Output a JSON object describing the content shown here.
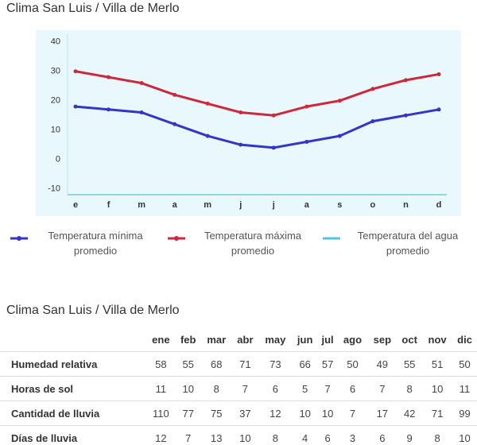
{
  "chart_data": {
    "type": "line",
    "title": "Clima San Luis / Villa de Merlo",
    "categories": [
      "e",
      "f",
      "m",
      "a",
      "m",
      "j",
      "j",
      "a",
      "s",
      "o",
      "n",
      "d"
    ],
    "series": [
      {
        "name": "Temperatura mínima promedio",
        "color": "#3535c8",
        "values": [
          18,
          17,
          16,
          12,
          8,
          5,
          4,
          6,
          8,
          13,
          15,
          17
        ]
      },
      {
        "name": "Temperatura máxima promedio",
        "color": "#d0273a",
        "values": [
          30,
          28,
          26,
          22,
          19,
          16,
          15,
          18,
          20,
          24,
          27,
          29
        ]
      },
      {
        "name": "Temperatura del agua promedio",
        "color": "#5bc0de",
        "values": [
          null,
          null,
          null,
          null,
          null,
          null,
          null,
          null,
          null,
          null,
          null,
          null
        ]
      }
    ],
    "ylim": [
      -12,
      44
    ],
    "yticks": [
      -10,
      0,
      10,
      20,
      30,
      40
    ],
    "grid": false
  },
  "table": {
    "title": "Clima San Luis / Villa de Merlo",
    "columns": [
      "ene",
      "feb",
      "mar",
      "abr",
      "may",
      "jun",
      "jul",
      "ago",
      "sep",
      "oct",
      "nov",
      "dic"
    ],
    "rows": [
      {
        "label": "Humedad relativa",
        "values": [
          58,
          55,
          68,
          71,
          73,
          66,
          57,
          50,
          49,
          55,
          51,
          50
        ]
      },
      {
        "label": "Horas de sol",
        "values": [
          11,
          10,
          8,
          7,
          6,
          5,
          7,
          6,
          7,
          8,
          10,
          11
        ]
      },
      {
        "label": "Cantidad de lluvia",
        "values": [
          110,
          77,
          75,
          37,
          12,
          10,
          10,
          7,
          17,
          42,
          71,
          99
        ]
      },
      {
        "label": "Días de lluvia",
        "values": [
          12,
          7,
          13,
          10,
          8,
          4,
          6,
          3,
          6,
          9,
          8,
          10
        ]
      }
    ]
  }
}
